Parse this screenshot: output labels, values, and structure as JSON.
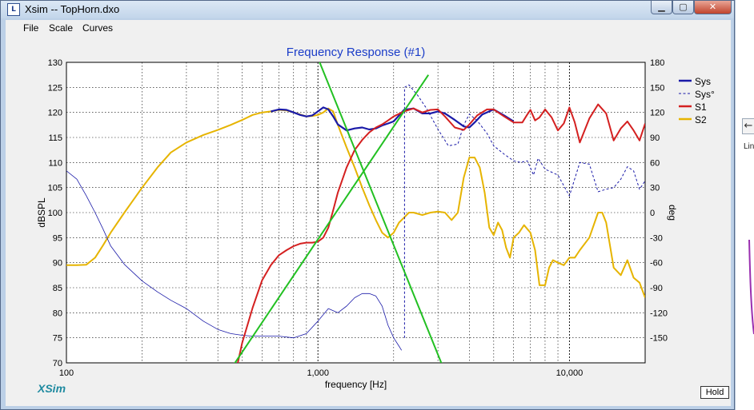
{
  "window": {
    "title": "Xsim -- TopHorn.dxo",
    "icon": "xsim-app-icon",
    "buttons": {
      "minimize": "minimize-icon",
      "maximize": "maximize-icon",
      "close": "close-icon"
    }
  },
  "menu": {
    "items": [
      "File",
      "Scale",
      "Curves"
    ]
  },
  "brand": "XSim",
  "hold_label": "Hold",
  "side_window": {
    "button_glyph": "←",
    "label_fragment": "Lin"
  },
  "chart_data": {
    "type": "line",
    "title": "Frequency Response (#1)",
    "xlabel": "frequency [Hz]",
    "ylabel": "dBSPL",
    "y2label": "deg",
    "xscale": "log",
    "xlim": [
      100,
      20000
    ],
    "ylim": [
      70,
      130
    ],
    "y2lim": [
      -180,
      180
    ],
    "xticks": [
      100,
      1000,
      10000
    ],
    "xtick_labels": [
      "100",
      "1,000",
      "10,000"
    ],
    "yticks": [
      70,
      75,
      80,
      85,
      90,
      95,
      100,
      105,
      110,
      115,
      120,
      125,
      130
    ],
    "y2ticks": [
      -150,
      -120,
      -90,
      -60,
      -30,
      0,
      30,
      60,
      90,
      120,
      150,
      180
    ],
    "grid": true,
    "legend_position": "right",
    "legend": [
      "Sys",
      "Sys°",
      "S1",
      "S2"
    ],
    "colors": {
      "sys": "#1a1aa8",
      "sys_phase": "#1a1aa8",
      "s1": "#d42020",
      "s2": "#e6b400",
      "target": "#22c022",
      "title": "#1a3cc8",
      "brand": "#1f8aa0"
    },
    "series": [
      {
        "name": "Sys",
        "axis": "left",
        "style": "solid",
        "x": [
          650,
          700,
          750,
          800,
          850,
          900,
          950,
          1000,
          1050,
          1100,
          1150,
          1200,
          1300,
          1400,
          1500,
          1600,
          1700,
          1800,
          1900,
          2000,
          2200,
          2400,
          2600,
          2800,
          3000,
          3200,
          3500,
          3800,
          4000,
          4200,
          4500,
          5000,
          5500,
          6000
        ],
        "y": [
          120.2,
          120.6,
          120.5,
          120.0,
          119.5,
          119.2,
          119.4,
          120.2,
          121.0,
          120.6,
          119.2,
          117.6,
          116.4,
          116.8,
          117.0,
          116.6,
          116.8,
          117.4,
          117.8,
          118.2,
          120.5,
          120.8,
          119.8,
          119.8,
          120.2,
          119.8,
          118.5,
          117.2,
          117.0,
          118.0,
          119.6,
          120.6,
          119.4,
          118.2
        ]
      },
      {
        "name": "Sys°",
        "axis": "right",
        "style": "dashed",
        "x": [
          2210,
          2210,
          2300,
          2500,
          2700,
          3000,
          3300,
          3600,
          3800,
          4000,
          4300,
          4700,
          5000,
          5500,
          6000,
          6400,
          6800,
          7200,
          7500,
          8000,
          9000,
          10000,
          11000,
          12000,
          13000,
          14000,
          15000,
          16000,
          17000,
          18000,
          19000,
          20000
        ],
        "y": [
          -150,
          150,
          153,
          140,
          125,
          100,
          80,
          82,
          105,
          118,
          110,
          95,
          80,
          70,
          62,
          60,
          62,
          45,
          65,
          52,
          45,
          20,
          60,
          58,
          25,
          28,
          30,
          40,
          55,
          50,
          28,
          38
        ]
      },
      {
        "name": "S1",
        "axis": "left",
        "style": "solid",
        "x": [
          480,
          500,
          550,
          600,
          650,
          700,
          750,
          800,
          850,
          900,
          950,
          1000,
          1050,
          1100,
          1150,
          1200,
          1300,
          1400,
          1500,
          1600,
          1700,
          1800,
          1900,
          2000,
          2200,
          2400,
          2600,
          2800,
          3000,
          3200,
          3500,
          3800,
          4000,
          4300,
          4700,
          5000,
          5500,
          6000,
          6500,
          6800,
          7000,
          7300,
          7600,
          8000,
          8500,
          9000,
          9500,
          10000,
          10500,
          11000,
          12000,
          13000,
          14000,
          15000,
          16000,
          17000,
          18000,
          19000,
          20000
        ],
        "y": [
          70,
          74,
          81,
          86.5,
          89.5,
          91.5,
          92.5,
          93.3,
          93.8,
          94.0,
          94.0,
          94.2,
          95.0,
          97.0,
          100.5,
          104.0,
          109.0,
          112.5,
          114.5,
          116.0,
          117.0,
          117.6,
          118.4,
          119.2,
          120.2,
          120.8,
          120.0,
          120.5,
          120.6,
          119.2,
          117.0,
          116.5,
          117.6,
          119.4,
          120.6,
          120.6,
          119.2,
          118.0,
          118.0,
          119.6,
          120.5,
          118.4,
          119.0,
          120.6,
          119.0,
          116.4,
          117.8,
          121.0,
          118.0,
          114.0,
          118.8,
          121.6,
          119.8,
          114.4,
          116.8,
          118.2,
          116.4,
          114.4,
          117.8
        ]
      },
      {
        "name": "S2",
        "axis": "left",
        "style": "solid",
        "x": [
          100,
          110,
          120,
          130,
          140,
          150,
          170,
          200,
          230,
          260,
          300,
          350,
          400,
          450,
          500,
          550,
          600,
          650,
          700,
          750,
          800,
          850,
          900,
          950,
          1000,
          1050,
          1100,
          1150,
          1200,
          1300,
          1400,
          1500,
          1600,
          1700,
          1800,
          1900,
          2000,
          2100,
          2200,
          2300,
          2400,
          2600,
          2800,
          3000,
          3200,
          3400,
          3600,
          3800,
          4000,
          4200,
          4400,
          4600,
          4800,
          5000,
          5200,
          5400,
          5600,
          5800,
          6000,
          6300,
          6600,
          7000,
          7300,
          7600,
          8000,
          8300,
          8600,
          9000,
          9500,
          10000,
          10500,
          11000,
          12000,
          13000,
          13500,
          14000,
          15000,
          16000,
          17000,
          18000,
          19000,
          20000
        ],
        "y": [
          89.5,
          89.5,
          89.6,
          91,
          93.5,
          96,
          100,
          105,
          109,
          112,
          114,
          115.5,
          116.5,
          117.5,
          118.5,
          119.5,
          120.0,
          120.2,
          120.5,
          120.4,
          120.0,
          119.6,
          119.2,
          119.3,
          119.5,
          120.0,
          120.8,
          120.2,
          117.5,
          113.0,
          109.0,
          105.0,
          101.5,
          98.5,
          96.0,
          95.0,
          96.0,
          98.0,
          99.0,
          100.0,
          100.0,
          99.5,
          100.0,
          100.2,
          100.0,
          98.5,
          100.0,
          107.0,
          111.0,
          111.0,
          109.0,
          104.0,
          97.0,
          95.5,
          98.0,
          96.5,
          93.0,
          91.0,
          95.0,
          96.0,
          97.5,
          96.0,
          92.5,
          85.5,
          85.5,
          89.0,
          90.5,
          90.0,
          89.5,
          91.0,
          91.0,
          92.5,
          95.0,
          100.0,
          100.0,
          98.0,
          89.0,
          87.5,
          90.5,
          87.0,
          86.0,
          83.0
        ]
      },
      {
        "name": "S1 phase",
        "axis": "right",
        "style": "thin",
        "x": [
          100,
          110,
          120,
          130,
          140,
          150,
          170,
          200,
          230,
          260,
          300,
          350,
          400,
          450,
          500,
          550,
          600,
          700,
          800,
          900,
          1000,
          1100,
          1200,
          1300,
          1400,
          1500,
          1600,
          1700,
          1800,
          1900,
          2000,
          2100,
          2150
        ],
        "y": [
          50,
          40,
          20,
          0,
          -20,
          -40,
          -62,
          -82,
          -95,
          -105,
          -115,
          -130,
          -140,
          -145,
          -147,
          -148,
          -148,
          -148,
          -150,
          -145,
          -130,
          -115,
          -120,
          -112,
          -102,
          -97,
          -97,
          -100,
          -112,
          -135,
          -150,
          -160,
          -165
        ]
      },
      {
        "name": "Target 1",
        "axis": "left",
        "style": "solid",
        "legend": false,
        "x": [
          440,
          2750
        ],
        "y": [
          68.0,
          127.5
        ]
      },
      {
        "name": "Target 2",
        "axis": "left",
        "style": "solid",
        "legend": false,
        "x": [
          1010,
          3350
        ],
        "y": [
          130.3,
          65.7
        ]
      }
    ]
  }
}
